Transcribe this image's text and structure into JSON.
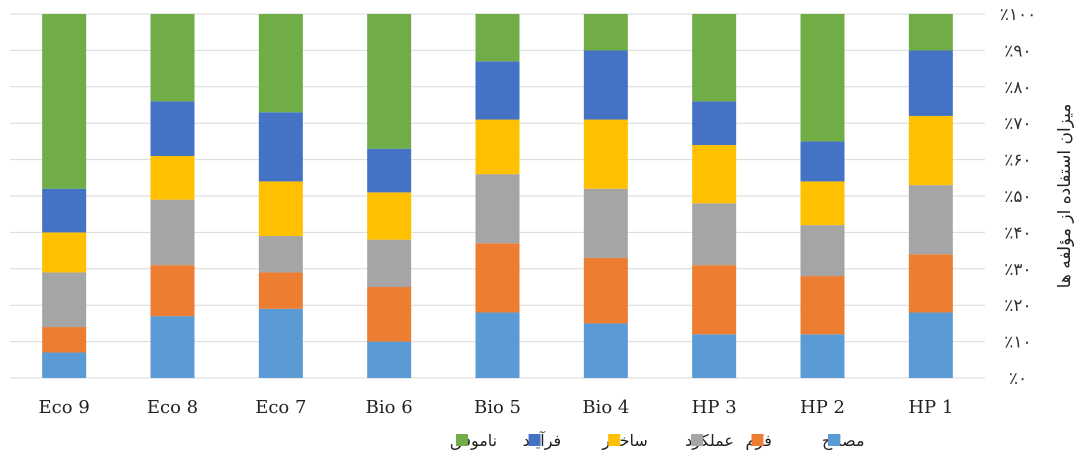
{
  "chart_data": {
    "type": "bar",
    "stacked": true,
    "x_direction": "right-to-left",
    "categories": [
      "HP 1",
      "HP 2",
      "HP 3",
      "Bio 4",
      "Bio 5",
      "Bio 6",
      "Eco 7",
      "Eco 8",
      "Eco 9"
    ],
    "series": [
      {
        "name": "مصالح",
        "color": "#5b9bd5",
        "values": [
          18,
          12,
          12,
          15,
          18,
          10,
          19,
          17,
          7
        ]
      },
      {
        "name": "فرم",
        "color": "#ed7d31",
        "values": [
          16,
          16,
          19,
          18,
          19,
          15,
          10,
          14,
          7
        ]
      },
      {
        "name": "عملکرد",
        "color": "#a5a5a5",
        "values": [
          19,
          14,
          17,
          19,
          19,
          13,
          10,
          18,
          15
        ]
      },
      {
        "name": "ساختار",
        "color": "#ffc000",
        "values": [
          19,
          12,
          16,
          19,
          15,
          13,
          15,
          12,
          11
        ]
      },
      {
        "name": "فرآیند",
        "color": "#4472c4",
        "values": [
          18,
          11,
          12,
          19,
          16,
          12,
          19,
          15,
          12
        ]
      },
      {
        "name": "ناموفق",
        "color": "#70ad47",
        "values": [
          10,
          35,
          24,
          10,
          13,
          37,
          27,
          24,
          48
        ]
      }
    ],
    "y_tick_labels": [
      "٪۰",
      "٪۱۰",
      "٪۲۰",
      "٪۳۰",
      "٪۴۰",
      "٪۵۰",
      "٪۶۰",
      "٪۷۰",
      "٪۸۰",
      "٪۹۰",
      "٪۱۰۰"
    ],
    "ylim": [
      0,
      100
    ],
    "ylabel": "میزان استفاده از مؤلفه ها",
    "xlabel": "",
    "title": "",
    "grid": true,
    "legend_position": "bottom"
  }
}
